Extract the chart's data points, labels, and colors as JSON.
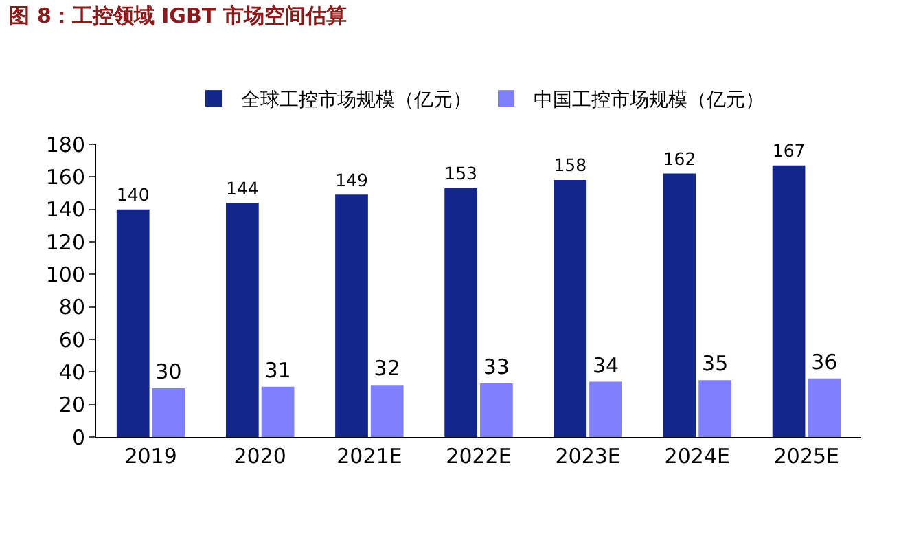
{
  "chart_data": {
    "type": "bar",
    "title": "图 8：工控领域 IGBT 市场空间估算",
    "categories": [
      "2019",
      "2020",
      "2021E",
      "2022E",
      "2023E",
      "2024E",
      "2025E"
    ],
    "series": [
      {
        "name": "全球工控市场规模（亿元）",
        "color": "#13268c",
        "values": [
          140,
          144,
          149,
          153,
          158,
          162,
          167
        ]
      },
      {
        "name": "中国工控市场规模（亿元）",
        "color": "#8080ff",
        "values": [
          30,
          31,
          32,
          33,
          34,
          35,
          36
        ]
      }
    ],
    "ylim": [
      0,
      180
    ],
    "yticks": [
      0,
      20,
      40,
      60,
      80,
      100,
      120,
      140,
      160,
      180
    ],
    "grid": false,
    "legend": "top",
    "data_labels": true
  }
}
